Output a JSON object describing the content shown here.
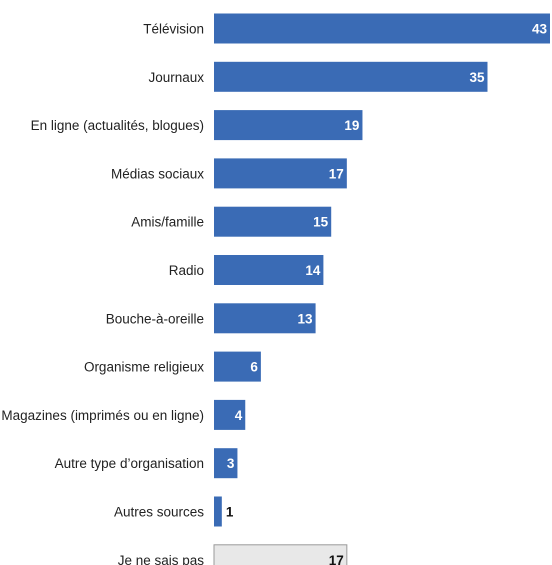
{
  "chart_data": {
    "type": "bar",
    "orientation": "horizontal",
    "categories": [
      "Télévision",
      "Journaux",
      "En ligne (actualités, blogues)",
      "Médias sociaux",
      "Amis/famille",
      "Radio",
      "Bouche-à-oreille",
      "Organisme religieux",
      "Magazines (imprimés ou en ligne)",
      "Autre type d’organisation",
      "Autres sources",
      "Je ne sais pas"
    ],
    "values": [
      43,
      35,
      19,
      17,
      15,
      14,
      13,
      6,
      4,
      3,
      1,
      17
    ],
    "data_labels": [
      "43",
      "35",
      "19",
      "17",
      "15",
      "14",
      "13",
      "6",
      "4",
      "3",
      "1",
      "17"
    ],
    "highlight": [
      false,
      false,
      false,
      false,
      false,
      false,
      false,
      false,
      false,
      false,
      false,
      true
    ],
    "xlim": [
      0,
      43
    ],
    "grid": false,
    "legend": "none",
    "colors": {
      "bar": "#3a6bb5",
      "bar_highlight": "#e8e8e8",
      "label_on_bar": "#ffffff",
      "label_outside": "#111111"
    }
  }
}
